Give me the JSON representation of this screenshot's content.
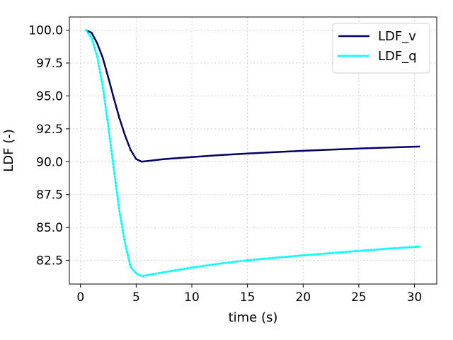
{
  "chart_data": {
    "type": "line",
    "xlabel": "time (s)",
    "ylabel": "LDF (-)",
    "xlim": [
      -1,
      32
    ],
    "ylim": [
      80.7,
      101.0
    ],
    "xticks": [
      0,
      5,
      10,
      15,
      20,
      25,
      30
    ],
    "yticks": [
      82.5,
      85.0,
      87.5,
      90.0,
      92.5,
      95.0,
      97.5,
      100.0
    ],
    "xtick_labels": [
      "0",
      "5",
      "10",
      "15",
      "20",
      "25",
      "30"
    ],
    "ytick_labels": [
      "82.5",
      "85.0",
      "87.5",
      "90.0",
      "92.5",
      "95.0",
      "97.5",
      "100.0"
    ],
    "grid": true,
    "legend_position": "top-right",
    "series": [
      {
        "name": "LDF_v",
        "color": "#000066",
        "style": "solid",
        "x": [
          0.5,
          1.0,
          1.5,
          2.0,
          2.5,
          3.0,
          3.5,
          4.0,
          4.5,
          5.0,
          5.5,
          7.5,
          10,
          12.5,
          15,
          17.5,
          20,
          22.5,
          25,
          27.5,
          30.5
        ],
        "y": [
          100.0,
          99.8,
          99.0,
          97.9,
          96.4,
          94.8,
          93.3,
          92.0,
          90.9,
          90.2,
          90.0,
          90.2,
          90.35,
          90.5,
          90.62,
          90.73,
          90.83,
          90.92,
          91.0,
          91.07,
          91.15
        ]
      },
      {
        "name": "LDF_q",
        "color": "#00ffff",
        "style": "dotted",
        "x": [
          0.5,
          1.0,
          1.5,
          2.0,
          2.5,
          3.0,
          3.5,
          4.0,
          4.5,
          5.0,
          5.5,
          7.5,
          10,
          12.5,
          15,
          17.5,
          20,
          22.5,
          25,
          27.5,
          30.5
        ],
        "y": [
          100.0,
          99.4,
          98.0,
          95.7,
          92.7,
          89.4,
          86.2,
          83.8,
          82.0,
          81.5,
          81.3,
          81.6,
          81.95,
          82.25,
          82.5,
          82.7,
          82.88,
          83.05,
          83.22,
          83.38,
          83.55
        ]
      }
    ]
  }
}
